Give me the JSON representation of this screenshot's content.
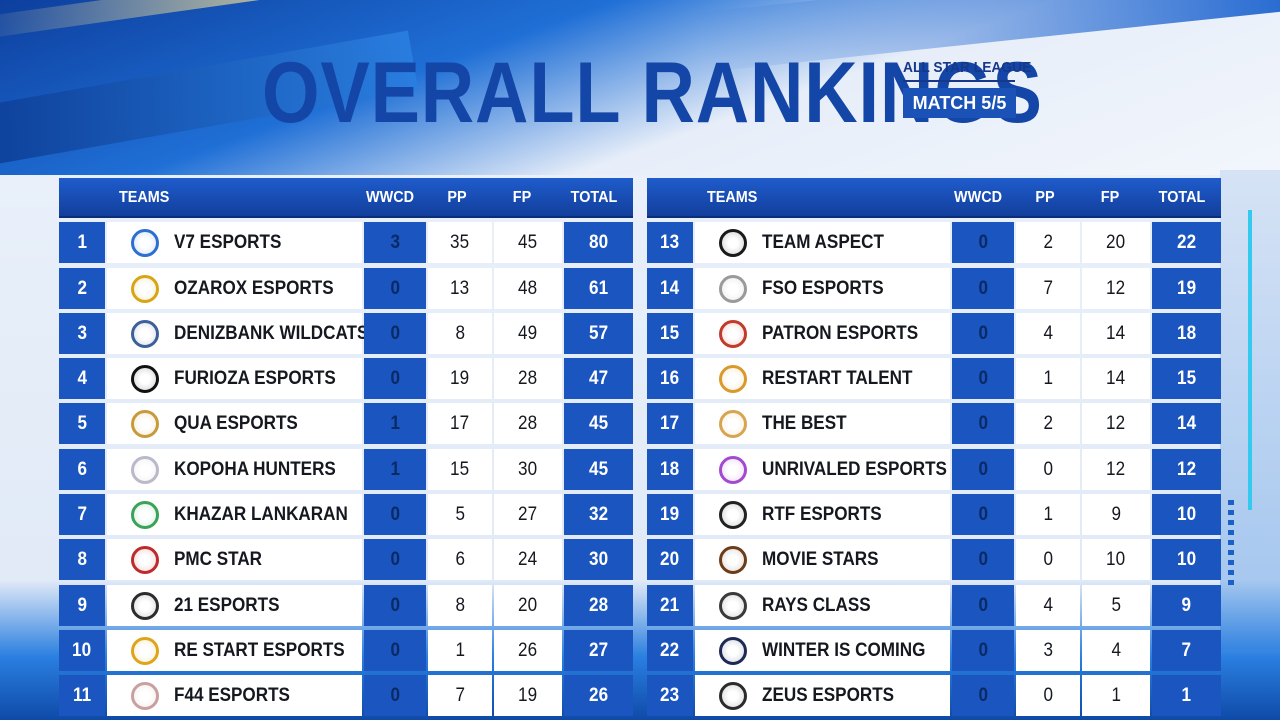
{
  "header": {
    "title": "OVERALL RANKINGS",
    "league": "ALL STAR LEAGUE",
    "match": "MATCH 5/5"
  },
  "columns": {
    "team": "TEAMS",
    "wwcd": "WWCD",
    "pp": "PP",
    "fp": "FP",
    "total": "TOTAL"
  },
  "colors": {
    "primary_blue": "#1a55c0",
    "title_blue": "#1446a8",
    "header_dark": "#123f9c"
  },
  "left_rows": [
    {
      "rank": "1",
      "team": "V7 ESPORTS",
      "wwcd": "3",
      "pp": "35",
      "fp": "45",
      "total": "80",
      "logo_icon": "v7-logo-icon",
      "logo_color": "#2d6fd1"
    },
    {
      "rank": "2",
      "team": "OZAROX ESPORTS",
      "wwcd": "0",
      "pp": "13",
      "fp": "48",
      "total": "61",
      "logo_icon": "ozarox-logo-icon",
      "logo_color": "#d8a514"
    },
    {
      "rank": "3",
      "team": "DENIZBANK WILDCATS",
      "wwcd": "0",
      "pp": "8",
      "fp": "49",
      "total": "57",
      "logo_icon": "wildcats-logo-icon",
      "logo_color": "#3d5f9a"
    },
    {
      "rank": "4",
      "team": "FURIOZA ESPORTS",
      "wwcd": "0",
      "pp": "19",
      "fp": "28",
      "total": "47",
      "logo_icon": "furioza-logo-icon",
      "logo_color": "#111111"
    },
    {
      "rank": "5",
      "team": "QUA ESPORTS",
      "wwcd": "1",
      "pp": "17",
      "fp": "28",
      "total": "45",
      "logo_icon": "qua-logo-icon",
      "logo_color": "#c79a3a"
    },
    {
      "rank": "6",
      "team": "KOPOHA HUNTERS",
      "wwcd": "1",
      "pp": "15",
      "fp": "30",
      "total": "45",
      "logo_icon": "kopoha-logo-icon",
      "logo_color": "#b9b9c9"
    },
    {
      "rank": "7",
      "team": "KHAZAR LANKARAN",
      "wwcd": "0",
      "pp": "5",
      "fp": "27",
      "total": "32",
      "logo_icon": "khazar-logo-icon",
      "logo_color": "#3aa35a"
    },
    {
      "rank": "8",
      "team": "PMC STAR",
      "wwcd": "0",
      "pp": "6",
      "fp": "24",
      "total": "30",
      "logo_icon": "pmc-logo-icon",
      "logo_color": "#c02a2a"
    },
    {
      "rank": "9",
      "team": "21 ESPORTS",
      "wwcd": "0",
      "pp": "8",
      "fp": "20",
      "total": "28",
      "logo_icon": "21-esports-logo-icon",
      "logo_color": "#2c2c2c"
    },
    {
      "rank": "10",
      "team": "RE START ESPORTS",
      "wwcd": "0",
      "pp": "1",
      "fp": "26",
      "total": "27",
      "logo_icon": "restart-esports-logo-icon",
      "logo_color": "#e0a41a"
    },
    {
      "rank": "11",
      "team": "F44 ESPORTS",
      "wwcd": "0",
      "pp": "7",
      "fp": "19",
      "total": "26",
      "logo_icon": "f44-logo-icon",
      "logo_color": "#c9a0a0"
    }
  ],
  "right_rows": [
    {
      "rank": "13",
      "team": "TEAM ASPECT",
      "wwcd": "0",
      "pp": "2",
      "fp": "20",
      "total": "22",
      "logo_icon": "aspect-logo-icon",
      "logo_color": "#1a1a1a"
    },
    {
      "rank": "14",
      "team": "FSO ESPORTS",
      "wwcd": "0",
      "pp": "7",
      "fp": "12",
      "total": "19",
      "logo_icon": "fso-logo-icon",
      "logo_color": "#9a9a9a"
    },
    {
      "rank": "15",
      "team": "PATRON ESPORTS",
      "wwcd": "0",
      "pp": "4",
      "fp": "14",
      "total": "18",
      "logo_icon": "patron-logo-icon",
      "logo_color": "#c23a2a"
    },
    {
      "rank": "16",
      "team": "RESTART TALENT",
      "wwcd": "0",
      "pp": "1",
      "fp": "14",
      "total": "15",
      "logo_icon": "restart-talent-logo-icon",
      "logo_color": "#d99a2a"
    },
    {
      "rank": "17",
      "team": "THE BEST",
      "wwcd": "0",
      "pp": "2",
      "fp": "12",
      "total": "14",
      "logo_icon": "the-best-logo-icon",
      "logo_color": "#d7a552"
    },
    {
      "rank": "18",
      "team": "UNRIVALED ESPORTS",
      "wwcd": "0",
      "pp": "0",
      "fp": "12",
      "total": "12",
      "logo_icon": "unrivaled-logo-icon",
      "logo_color": "#a24ad0"
    },
    {
      "rank": "19",
      "team": "RTF ESPORTS",
      "wwcd": "0",
      "pp": "1",
      "fp": "9",
      "total": "10",
      "logo_icon": "rtf-logo-icon",
      "logo_color": "#222222"
    },
    {
      "rank": "20",
      "team": "MOVIE STARS",
      "wwcd": "0",
      "pp": "0",
      "fp": "10",
      "total": "10",
      "logo_icon": "movie-stars-logo-icon",
      "logo_color": "#6b3d1a"
    },
    {
      "rank": "21",
      "team": "RAYS CLASS",
      "wwcd": "0",
      "pp": "4",
      "fp": "5",
      "total": "9",
      "logo_icon": "rays-class-logo-icon",
      "logo_color": "#3a3a3a"
    },
    {
      "rank": "22",
      "team": "WINTER IS COMING",
      "wwcd": "0",
      "pp": "3",
      "fp": "4",
      "total": "7",
      "logo_icon": "winter-logo-icon",
      "logo_color": "#1c2a55"
    },
    {
      "rank": "23",
      "team": "ZEUS ESPORTS",
      "wwcd": "0",
      "pp": "0",
      "fp": "1",
      "total": "1",
      "logo_icon": "zeus-logo-icon",
      "logo_color": "#2b2b2b"
    }
  ]
}
